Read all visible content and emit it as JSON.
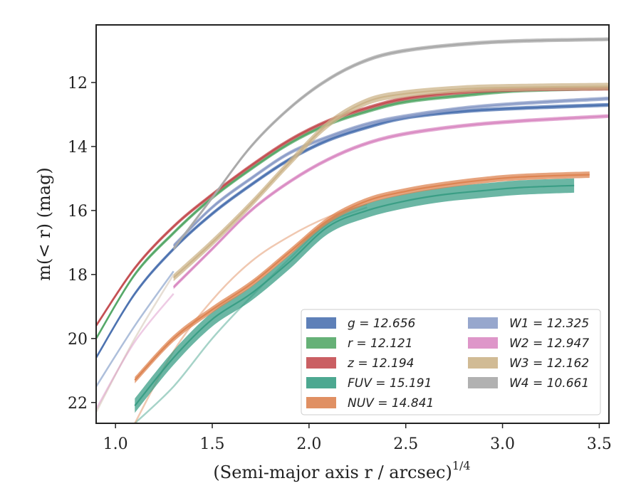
{
  "chart_data": {
    "type": "line",
    "xlabel": "(Semi-major axis r / arcsec)",
    "xlabel_sup": "1/4",
    "ylabel": "m(< r) (mag)",
    "xlim": [
      0.9,
      3.55
    ],
    "ylim": [
      22.65,
      10.2
    ],
    "y_inverted": true,
    "grid": false,
    "legend": "lower-right",
    "xticks": [
      1.0,
      1.5,
      2.0,
      2.5,
      3.0,
      3.5
    ],
    "xtick_labels": [
      "1.0",
      "1.5",
      "2.0",
      "2.5",
      "3.0",
      "3.5"
    ],
    "yticks": [
      12,
      14,
      16,
      18,
      20,
      22
    ],
    "ytick_labels": [
      "12",
      "14",
      "16",
      "18",
      "20",
      "22"
    ],
    "series": [
      {
        "name": "g = 12.656",
        "key": "g",
        "color": "#4C72B0",
        "x": [
          0.9,
          1.1,
          1.3,
          1.5,
          1.7,
          1.9,
          2.1,
          2.3,
          2.5,
          2.8,
          3.1,
          3.55
        ],
        "y": [
          20.6,
          18.6,
          17.2,
          16.1,
          15.2,
          14.4,
          13.8,
          13.4,
          13.1,
          12.9,
          12.8,
          12.7
        ],
        "band": 0.12
      },
      {
        "name": "r = 12.121",
        "key": "r",
        "color": "#55A868",
        "x": [
          0.9,
          1.1,
          1.3,
          1.5,
          1.7,
          1.9,
          2.1,
          2.3,
          2.5,
          2.8,
          3.1,
          3.55
        ],
        "y": [
          20.0,
          18.0,
          16.7,
          15.6,
          14.7,
          13.9,
          13.3,
          12.9,
          12.6,
          12.4,
          12.25,
          12.18
        ],
        "band": 0.12
      },
      {
        "name": "z = 12.194",
        "key": "z",
        "color": "#C44E52",
        "x": [
          0.9,
          1.1,
          1.3,
          1.5,
          1.7,
          1.9,
          2.1,
          2.3,
          2.5,
          2.8,
          3.1,
          3.55
        ],
        "y": [
          19.6,
          17.8,
          16.5,
          15.5,
          14.6,
          13.8,
          13.2,
          12.8,
          12.5,
          12.3,
          12.22,
          12.19
        ],
        "band": 0.12
      },
      {
        "name": "FUV = 15.191",
        "key": "FUV",
        "color": "#3A9E85",
        "x": [
          1.1,
          1.3,
          1.5,
          1.7,
          1.9,
          2.1,
          2.3,
          2.5,
          2.7,
          2.9,
          3.1,
          3.37
        ],
        "y": [
          22.1,
          20.6,
          19.4,
          18.6,
          17.6,
          16.5,
          16.0,
          15.7,
          15.5,
          15.38,
          15.28,
          15.22
        ],
        "band": 0.45
      },
      {
        "name": "NUV = 14.841",
        "key": "NUV",
        "color": "#DD8452",
        "x": [
          1.1,
          1.3,
          1.5,
          1.7,
          1.9,
          2.1,
          2.3,
          2.5,
          2.7,
          2.9,
          3.1,
          3.45
        ],
        "y": [
          21.3,
          20.0,
          19.1,
          18.3,
          17.3,
          16.3,
          15.7,
          15.4,
          15.2,
          15.05,
          14.95,
          14.88
        ],
        "band": 0.2
      },
      {
        "name": "W1 = 12.325",
        "key": "W1",
        "color": "#8C9DC8",
        "x": [
          1.3,
          1.5,
          1.7,
          1.9,
          2.1,
          2.3,
          2.5,
          2.8,
          3.1,
          3.55
        ],
        "y": [
          17.1,
          15.9,
          15.0,
          14.2,
          13.7,
          13.3,
          13.05,
          12.8,
          12.65,
          12.5
        ],
        "band": 0.12
      },
      {
        "name": "W2 = 12.947",
        "key": "W2",
        "color": "#DA8BC3",
        "x": [
          1.3,
          1.5,
          1.7,
          1.9,
          2.1,
          2.3,
          2.5,
          2.8,
          3.1,
          3.55
        ],
        "y": [
          18.4,
          17.2,
          16.0,
          15.1,
          14.4,
          13.9,
          13.6,
          13.35,
          13.2,
          13.05
        ],
        "band": 0.12
      },
      {
        "name": "W3 = 12.162",
        "key": "W3",
        "color": "#CCB48A",
        "x": [
          1.3,
          1.5,
          1.7,
          1.9,
          2.1,
          2.3,
          2.5,
          2.8,
          3.1,
          3.55
        ],
        "y": [
          18.1,
          17.0,
          15.8,
          14.5,
          13.3,
          12.6,
          12.35,
          12.2,
          12.15,
          12.12
        ],
        "band": 0.22
      },
      {
        "name": "W4 = 10.661",
        "key": "W4",
        "color": "#A9A9A9",
        "x": [
          1.3,
          1.5,
          1.7,
          1.9,
          2.1,
          2.3,
          2.5,
          2.8,
          3.1,
          3.55
        ],
        "y": [
          17.2,
          15.6,
          14.0,
          12.8,
          11.9,
          11.3,
          11.0,
          10.8,
          10.7,
          10.65
        ],
        "band": 0.12
      }
    ],
    "faint_tails": [
      {
        "key": "g",
        "color": "#4C72B0",
        "x": [
          0.9,
          1.1,
          1.3
        ],
        "y": [
          21.5,
          19.6,
          17.9
        ]
      },
      {
        "key": "r",
        "color": "#C8B6A0",
        "x": [
          0.9,
          1.1,
          1.3
        ],
        "y": [
          22.3,
          20.0,
          18.0
        ]
      },
      {
        "key": "W2",
        "color": "#DA8BC3",
        "x": [
          0.9,
          1.1,
          1.3
        ],
        "y": [
          22.2,
          20.1,
          18.6
        ]
      },
      {
        "key": "FUV",
        "color": "#3A9E85",
        "x": [
          1.1,
          1.3,
          1.5,
          1.7,
          1.9,
          2.1,
          2.3
        ],
        "y": [
          22.65,
          21.5,
          20.0,
          18.7,
          17.5,
          16.4,
          15.9
        ]
      },
      {
        "key": "NUV",
        "color": "#DD8452",
        "x": [
          1.1,
          1.3,
          1.5,
          1.7,
          1.9,
          2.1,
          2.3
        ],
        "y": [
          22.65,
          20.4,
          18.8,
          17.6,
          16.8,
          16.2,
          15.8
        ]
      }
    ]
  }
}
